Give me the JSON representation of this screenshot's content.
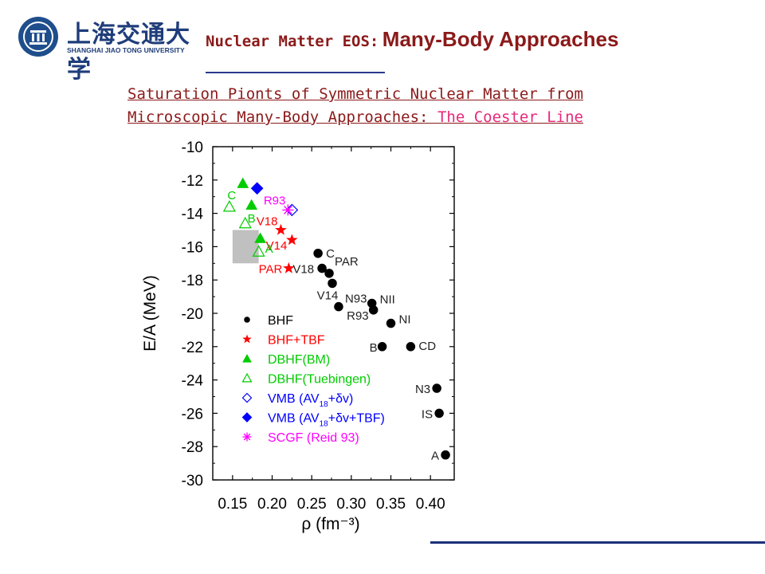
{
  "header": {
    "university_name_cn": "上海交通大学",
    "university_name_en": "SHANGHAI JIAO TONG UNIVERSITY",
    "seal_year": "1896",
    "title_part1": "Nuclear Matter EOS:",
    "title_part2": "Many-Body Approaches"
  },
  "subtitle": {
    "line1": "Saturation Pionts of Symmetric Nuclear Matter from",
    "line2_prefix": "Microscopic Many-Body Approaches:",
    "line2_highlight": "The Coester Line"
  },
  "colors": {
    "title": "#8b1a1a",
    "highlight": "#e8287a",
    "rule": "#2b3a8c",
    "bhf": "#000000",
    "tbf": "#ff0000",
    "dbhf": "#00cc00",
    "vmb": "#0000ff",
    "scgf": "#ff00ff",
    "box": "#c0c0c0"
  },
  "chart_data": {
    "type": "scatter",
    "xlabel": "ρ (fm⁻³)",
    "ylabel": "E/A (MeV)",
    "xlim": [
      0.125,
      0.43
    ],
    "ylim": [
      -30,
      -10
    ],
    "xticks": [
      "0.15",
      "0.20",
      "0.25",
      "0.30",
      "0.35",
      "0.40"
    ],
    "yticks": [
      "-10",
      "-12",
      "-14",
      "-16",
      "-18",
      "-20",
      "-22",
      "-24",
      "-26",
      "-28",
      "-30"
    ],
    "grid": false,
    "legend_position": "bottom-left",
    "shaded_region": {
      "x": [
        0.15,
        0.183
      ],
      "y": [
        -17,
        -15
      ]
    },
    "series": [
      {
        "name": "BHF",
        "marker": "circle",
        "color": "#000000",
        "points": [
          {
            "x": 0.258,
            "y": -16.4,
            "label": "C"
          },
          {
            "x": 0.263,
            "y": -17.3,
            "label": "V18"
          },
          {
            "x": 0.272,
            "y": -17.6,
            "label": "PAR"
          },
          {
            "x": 0.276,
            "y": -18.2,
            "label": "V14"
          },
          {
            "x": 0.284,
            "y": -19.6,
            "label": "N93"
          },
          {
            "x": 0.326,
            "y": -19.4,
            "label": "NII"
          },
          {
            "x": 0.328,
            "y": -19.8,
            "label": "R93"
          },
          {
            "x": 0.35,
            "y": -20.6,
            "label": "NI"
          },
          {
            "x": 0.339,
            "y": -22.0,
            "label": "B"
          },
          {
            "x": 0.375,
            "y": -22.0,
            "label": "CD"
          },
          {
            "x": 0.408,
            "y": -24.5,
            "label": "N3"
          },
          {
            "x": 0.411,
            "y": -26.0,
            "label": "IS"
          },
          {
            "x": 0.419,
            "y": -28.5,
            "label": "A"
          }
        ]
      },
      {
        "name": "BHF+TBF",
        "marker": "star",
        "color": "#ff0000",
        "points": [
          {
            "x": 0.211,
            "y": -15.0,
            "label": "V18"
          },
          {
            "x": 0.225,
            "y": -15.6,
            "label": "V14"
          },
          {
            "x": 0.221,
            "y": -17.3,
            "label": "PAR"
          }
        ]
      },
      {
        "name": "DBHF(BM)",
        "marker": "triangle-filled",
        "color": "#00cc00",
        "points": [
          {
            "x": 0.163,
            "y": -12.2,
            "label": "C"
          },
          {
            "x": 0.174,
            "y": -13.5,
            "label": "B"
          },
          {
            "x": 0.185,
            "y": -15.5,
            "label": "A"
          }
        ]
      },
      {
        "name": "DBHF(Tuebingen)",
        "marker": "triangle-open",
        "color": "#00cc00",
        "points": [
          {
            "x": 0.146,
            "y": -13.6
          },
          {
            "x": 0.166,
            "y": -14.6
          },
          {
            "x": 0.183,
            "y": -16.3
          }
        ]
      },
      {
        "name": "VMB (AV18+δv)",
        "marker": "diamond-open",
        "color": "#0000ff",
        "points": [
          {
            "x": 0.225,
            "y": -13.8
          }
        ]
      },
      {
        "name": "VMB (AV18+δv+TBF)",
        "marker": "diamond-filled",
        "color": "#0000ff",
        "points": [
          {
            "x": 0.181,
            "y": -12.5
          }
        ]
      },
      {
        "name": "SCGF (Reid 93)",
        "marker": "asterisk",
        "color": "#ff00ff",
        "points": [
          {
            "x": 0.22,
            "y": -13.8,
            "label": "R93"
          }
        ]
      }
    ],
    "legend": [
      {
        "marker": "circle",
        "color": "#000000",
        "text": "BHF",
        "text_color": "#000000"
      },
      {
        "marker": "star",
        "color": "#ff0000",
        "text": "BHF+TBF",
        "text_color": "#ff0000"
      },
      {
        "marker": "triangle-filled",
        "color": "#00cc00",
        "text": "DBHF(BM)",
        "text_color": "#00cc00"
      },
      {
        "marker": "triangle-open",
        "color": "#00cc00",
        "text": "DBHF(Tuebingen)",
        "text_color": "#00cc00"
      },
      {
        "marker": "diamond-open",
        "color": "#0000ff",
        "text": "VMB (AV",
        "sub": "18",
        "after": "+δv)",
        "text_color": "#0000ff"
      },
      {
        "marker": "diamond-filled",
        "color": "#0000ff",
        "text": "VMB (AV",
        "sub": "18",
        "after": "+δv+TBF)",
        "text_color": "#0000ff"
      },
      {
        "marker": "asterisk",
        "color": "#ff00ff",
        "text": "SCGF (Reid 93)",
        "text_color": "#ff00ff"
      }
    ]
  }
}
